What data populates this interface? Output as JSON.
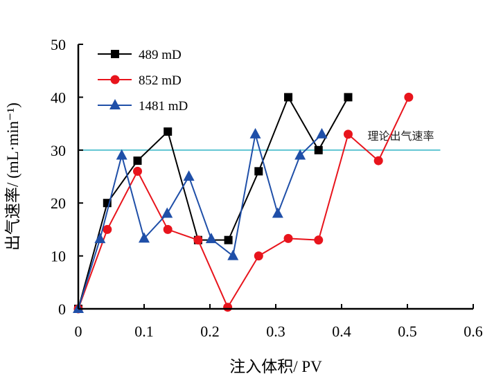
{
  "chart_data": {
    "type": "line",
    "xlabel": "注入体积/ PV",
    "ylabel": "出气速率/ (mL·min⁻¹)",
    "xlim": [
      0,
      0.6
    ],
    "ylim": [
      0,
      50
    ],
    "xticks": [
      "0",
      "0.1",
      "0.2",
      "0.3",
      "0.4",
      "0.5",
      "0.6"
    ],
    "yticks": [
      "0",
      "10",
      "20",
      "30",
      "40",
      "50"
    ],
    "grid": false,
    "legend": "top-left",
    "series": [
      {
        "name": "489 mD",
        "color": "#000000",
        "marker": "square",
        "x": [
          0,
          0.044,
          0.09,
          0.136,
          0.182,
          0.228,
          0.274,
          0.319,
          0.365,
          0.41
        ],
        "y": [
          0,
          20,
          28,
          33.5,
          13,
          13,
          26,
          40,
          30,
          40
        ]
      },
      {
        "name": "852 mD",
        "color": "#e8141c",
        "marker": "circle",
        "x": [
          0,
          0.044,
          0.09,
          0.136,
          0.182,
          0.227,
          0.274,
          0.319,
          0.365,
          0.41,
          0.456,
          0.502
        ],
        "y": [
          0,
          15,
          26,
          15,
          13,
          0.3,
          10,
          13.3,
          13,
          33,
          28,
          40
        ]
      },
      {
        "name": "1481 mD",
        "color": "#1f4fa8",
        "marker": "triangle",
        "x": [
          0,
          0.033,
          0.066,
          0.1,
          0.135,
          0.168,
          0.202,
          0.235,
          0.269,
          0.303,
          0.337,
          0.37
        ],
        "y": [
          0,
          13.2,
          29,
          13.3,
          18,
          25,
          13.2,
          10,
          33,
          18,
          29,
          33
        ]
      }
    ],
    "reference_line": {
      "label": "理论出气速率",
      "y": 30,
      "x": [
        0,
        0.55
      ],
      "color": "#5bc4d1"
    }
  }
}
